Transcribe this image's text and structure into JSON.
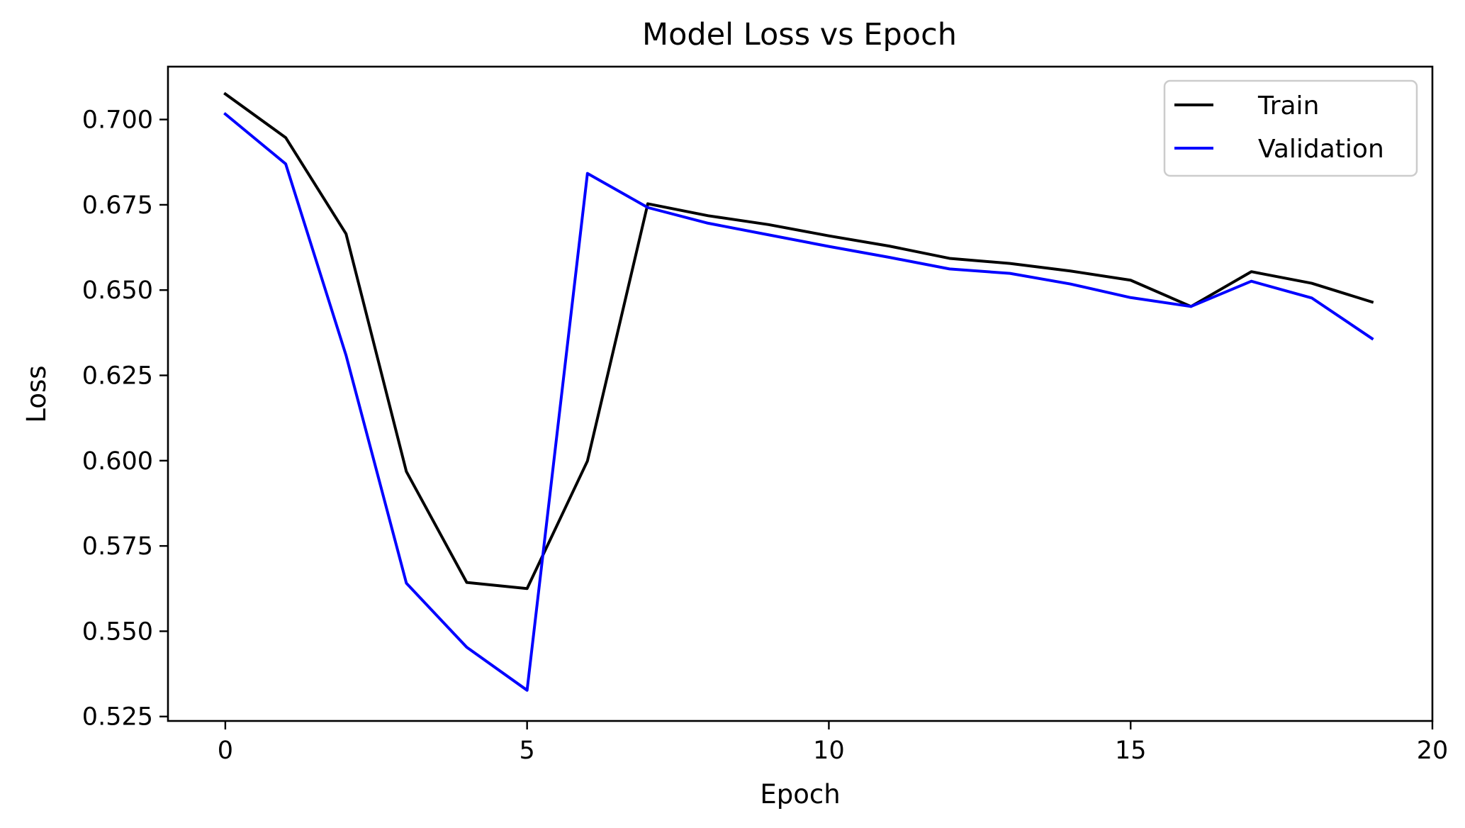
{
  "chart_data": {
    "type": "line",
    "title": "Model Loss vs Epoch",
    "xlabel": "Epoch",
    "ylabel": "Loss",
    "xlim": [
      -0.95,
      20
    ],
    "ylim": [
      0.5237,
      0.7155
    ],
    "xticks": [
      0,
      5,
      10,
      15,
      20
    ],
    "xtick_labels": [
      "0",
      "5",
      "10",
      "15",
      "20"
    ],
    "yticks": [
      0.525,
      0.55,
      0.575,
      0.6,
      0.625,
      0.65,
      0.675,
      0.7
    ],
    "ytick_labels": [
      "0.525",
      "0.550",
      "0.575",
      "0.600",
      "0.625",
      "0.650",
      "0.675",
      "0.700"
    ],
    "grid": false,
    "legend": "top-right",
    "x": [
      0,
      1,
      2,
      3,
      4,
      5,
      6,
      7,
      8,
      9,
      10,
      11,
      12,
      13,
      14,
      15,
      16,
      17,
      18,
      19
    ],
    "series": [
      {
        "name": "Train",
        "color": "#000000",
        "values": [
          0.7075,
          0.6947,
          0.6665,
          0.5968,
          0.5643,
          0.5625,
          0.5999,
          0.6753,
          0.6718,
          0.6692,
          0.6659,
          0.6629,
          0.6593,
          0.6578,
          0.6556,
          0.6529,
          0.6452,
          0.6554,
          0.652,
          0.6465
        ]
      },
      {
        "name": "Validation",
        "color": "#0000ff",
        "values": [
          0.7016,
          0.687,
          0.6309,
          0.5641,
          0.5453,
          0.5327,
          0.6842,
          0.6742,
          0.6696,
          0.6662,
          0.6628,
          0.6596,
          0.6562,
          0.6549,
          0.6518,
          0.6478,
          0.6452,
          0.6526,
          0.6477,
          0.6358
        ]
      }
    ]
  }
}
